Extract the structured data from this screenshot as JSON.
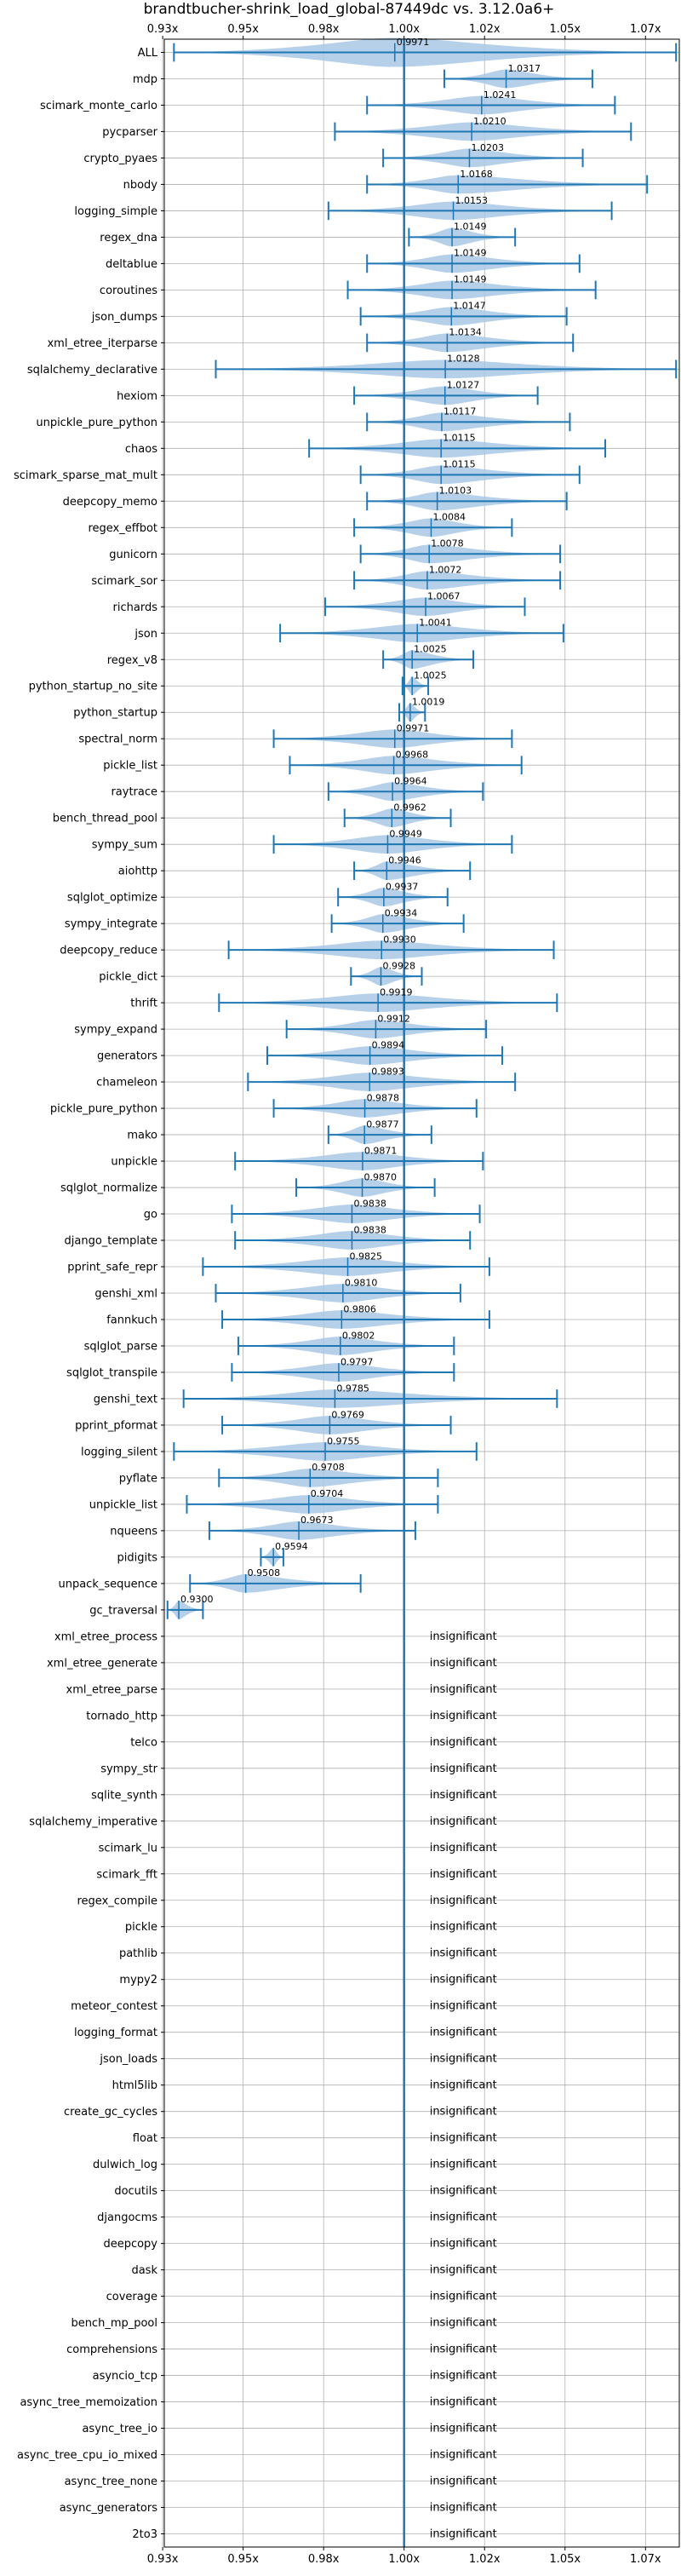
{
  "chart_data": {
    "type": "violin",
    "title": "brandtbucher-shrink_load_global-87449dc vs. 3.12.0a6+",
    "xlabel": "",
    "ylabel": "",
    "x_range": [
      0.9255,
      1.0855
    ],
    "x_ticks": [
      {
        "value": 0.925,
        "label": "0.93x"
      },
      {
        "value": 0.95,
        "label": "0.95x"
      },
      {
        "value": 0.975,
        "label": "0.98x"
      },
      {
        "value": 1.0,
        "label": "1.00x"
      },
      {
        "value": 1.025,
        "label": "1.02x"
      },
      {
        "value": 1.05,
        "label": "1.05x"
      },
      {
        "value": 1.075,
        "label": "1.07x"
      }
    ],
    "reference_x": 1.0,
    "grid": true,
    "colors": {
      "violin": "#a8c8e4",
      "line": "#1f77b4",
      "grid": "#b0b0b0"
    },
    "insignificant_label": "insignificant",
    "benchmarks": [
      {
        "name": "ALL",
        "mean": 0.9971,
        "label": "0.9971",
        "min": 0.9285,
        "max": 1.0845,
        "width": 0.55
      },
      {
        "name": "mdp",
        "mean": 1.0317,
        "label": "1.0317",
        "min": 1.0125,
        "max": 1.0585,
        "width": 0.35
      },
      {
        "name": "scimark_monte_carlo",
        "mean": 1.0241,
        "label": "1.0241",
        "min": 0.9885,
        "max": 1.0655,
        "width": 0.35
      },
      {
        "name": "pycparser",
        "mean": 1.021,
        "label": "1.0210",
        "min": 0.9785,
        "max": 1.0705,
        "width": 0.35
      },
      {
        "name": "crypto_pyaes",
        "mean": 1.0203,
        "label": "1.0203",
        "min": 0.9935,
        "max": 1.0555,
        "width": 0.35
      },
      {
        "name": "nbody",
        "mean": 1.0168,
        "label": "1.0168",
        "min": 0.9885,
        "max": 1.0755,
        "width": 0.35
      },
      {
        "name": "logging_simple",
        "mean": 1.0153,
        "label": "1.0153",
        "min": 0.9765,
        "max": 1.0645,
        "width": 0.35
      },
      {
        "name": "regex_dna",
        "mean": 1.0149,
        "label": "1.0149",
        "min": 1.0015,
        "max": 1.0345,
        "width": 0.35
      },
      {
        "name": "deltablue",
        "mean": 1.0149,
        "label": "1.0149",
        "min": 0.9885,
        "max": 1.0545,
        "width": 0.35
      },
      {
        "name": "coroutines",
        "mean": 1.0149,
        "label": "1.0149",
        "min": 0.9825,
        "max": 1.0595,
        "width": 0.35
      },
      {
        "name": "json_dumps",
        "mean": 1.0147,
        "label": "1.0147",
        "min": 0.9865,
        "max": 1.0505,
        "width": 0.35
      },
      {
        "name": "xml_etree_iterparse",
        "mean": 1.0134,
        "label": "1.0134",
        "min": 0.9885,
        "max": 1.0525,
        "width": 0.35
      },
      {
        "name": "sqlalchemy_declarative",
        "mean": 1.0128,
        "label": "1.0128",
        "min": 0.9415,
        "max": 1.0845,
        "width": 0.35
      },
      {
        "name": "hexiom",
        "mean": 1.0127,
        "label": "1.0127",
        "min": 0.9845,
        "max": 1.0415,
        "width": 0.35
      },
      {
        "name": "unpickle_pure_python",
        "mean": 1.0117,
        "label": "1.0117",
        "min": 0.9885,
        "max": 1.0515,
        "width": 0.35
      },
      {
        "name": "chaos",
        "mean": 1.0115,
        "label": "1.0115",
        "min": 0.9705,
        "max": 1.0625,
        "width": 0.35
      },
      {
        "name": "scimark_sparse_mat_mult",
        "mean": 1.0115,
        "label": "1.0115",
        "min": 0.9865,
        "max": 1.0545,
        "width": 0.35
      },
      {
        "name": "deepcopy_memo",
        "mean": 1.0103,
        "label": "1.0103",
        "min": 0.9885,
        "max": 1.0505,
        "width": 0.35
      },
      {
        "name": "regex_effbot",
        "mean": 1.0084,
        "label": "1.0084",
        "min": 0.9845,
        "max": 1.0335,
        "width": 0.35
      },
      {
        "name": "gunicorn",
        "mean": 1.0078,
        "label": "1.0078",
        "min": 0.9865,
        "max": 1.0485,
        "width": 0.35
      },
      {
        "name": "scimark_sor",
        "mean": 1.0072,
        "label": "1.0072",
        "min": 0.9845,
        "max": 1.0485,
        "width": 0.35
      },
      {
        "name": "richards",
        "mean": 1.0067,
        "label": "1.0067",
        "min": 0.9755,
        "max": 1.0375,
        "width": 0.35
      },
      {
        "name": "json",
        "mean": 1.0041,
        "label": "1.0041",
        "min": 0.9615,
        "max": 1.0495,
        "width": 0.35
      },
      {
        "name": "regex_v8",
        "mean": 1.0025,
        "label": "1.0025",
        "min": 0.9935,
        "max": 1.0215,
        "width": 0.35
      },
      {
        "name": "python_startup_no_site",
        "mean": 1.0025,
        "label": "1.0025",
        "min": 0.9995,
        "max": 1.0075,
        "width": 0.35
      },
      {
        "name": "python_startup",
        "mean": 1.0019,
        "label": "1.0019",
        "min": 0.9985,
        "max": 1.0065,
        "width": 0.35
      },
      {
        "name": "spectral_norm",
        "mean": 0.9971,
        "label": "0.9971",
        "min": 0.9595,
        "max": 1.0335,
        "width": 0.35
      },
      {
        "name": "pickle_list",
        "mean": 0.9968,
        "label": "0.9968",
        "min": 0.9645,
        "max": 1.0365,
        "width": 0.35
      },
      {
        "name": "raytrace",
        "mean": 0.9964,
        "label": "0.9964",
        "min": 0.9765,
        "max": 1.0245,
        "width": 0.35
      },
      {
        "name": "bench_thread_pool",
        "mean": 0.9962,
        "label": "0.9962",
        "min": 0.9815,
        "max": 1.0145,
        "width": 0.35
      },
      {
        "name": "sympy_sum",
        "mean": 0.9949,
        "label": "0.9949",
        "min": 0.9595,
        "max": 1.0335,
        "width": 0.35
      },
      {
        "name": "aiohttp",
        "mean": 0.9946,
        "label": "0.9946",
        "min": 0.9845,
        "max": 1.0205,
        "width": 0.35
      },
      {
        "name": "sqlglot_optimize",
        "mean": 0.9937,
        "label": "0.9937",
        "min": 0.9795,
        "max": 1.0135,
        "width": 0.35
      },
      {
        "name": "sympy_integrate",
        "mean": 0.9934,
        "label": "0.9934",
        "min": 0.9775,
        "max": 1.0185,
        "width": 0.35
      },
      {
        "name": "deepcopy_reduce",
        "mean": 0.993,
        "label": "0.9930",
        "min": 0.9455,
        "max": 1.0465,
        "width": 0.35
      },
      {
        "name": "pickle_dict",
        "mean": 0.9928,
        "label": "0.9928",
        "min": 0.9835,
        "max": 1.0055,
        "width": 0.35
      },
      {
        "name": "thrift",
        "mean": 0.9919,
        "label": "0.9919",
        "min": 0.9425,
        "max": 1.0475,
        "width": 0.35
      },
      {
        "name": "sympy_expand",
        "mean": 0.9912,
        "label": "0.9912",
        "min": 0.9635,
        "max": 1.0255,
        "width": 0.35
      },
      {
        "name": "generators",
        "mean": 0.9894,
        "label": "0.9894",
        "min": 0.9575,
        "max": 1.0305,
        "width": 0.35
      },
      {
        "name": "chameleon",
        "mean": 0.9893,
        "label": "0.9893",
        "min": 0.9515,
        "max": 1.0345,
        "width": 0.35
      },
      {
        "name": "pickle_pure_python",
        "mean": 0.9878,
        "label": "0.9878",
        "min": 0.9595,
        "max": 1.0225,
        "width": 0.35
      },
      {
        "name": "mako",
        "mean": 0.9877,
        "label": "0.9877",
        "min": 0.9765,
        "max": 1.0085,
        "width": 0.35
      },
      {
        "name": "unpickle",
        "mean": 0.9871,
        "label": "0.9871",
        "min": 0.9475,
        "max": 1.0245,
        "width": 0.35
      },
      {
        "name": "sqlglot_normalize",
        "mean": 0.987,
        "label": "0.9870",
        "min": 0.9665,
        "max": 1.0095,
        "width": 0.35
      },
      {
        "name": "go",
        "mean": 0.9838,
        "label": "0.9838",
        "min": 0.9465,
        "max": 1.0235,
        "width": 0.35
      },
      {
        "name": "django_template",
        "mean": 0.9838,
        "label": "0.9838",
        "min": 0.9475,
        "max": 1.0205,
        "width": 0.35
      },
      {
        "name": "pprint_safe_repr",
        "mean": 0.9825,
        "label": "0.9825",
        "min": 0.9375,
        "max": 1.0265,
        "width": 0.35
      },
      {
        "name": "genshi_xml",
        "mean": 0.981,
        "label": "0.9810",
        "min": 0.9415,
        "max": 1.0175,
        "width": 0.35
      },
      {
        "name": "fannkuch",
        "mean": 0.9806,
        "label": "0.9806",
        "min": 0.9435,
        "max": 1.0265,
        "width": 0.35
      },
      {
        "name": "sqlglot_parse",
        "mean": 0.9802,
        "label": "0.9802",
        "min": 0.9485,
        "max": 1.0155,
        "width": 0.35
      },
      {
        "name": "sqlglot_transpile",
        "mean": 0.9797,
        "label": "0.9797",
        "min": 0.9465,
        "max": 1.0155,
        "width": 0.35
      },
      {
        "name": "genshi_text",
        "mean": 0.9785,
        "label": "0.9785",
        "min": 0.9315,
        "max": 1.0475,
        "width": 0.35
      },
      {
        "name": "pprint_pformat",
        "mean": 0.9769,
        "label": "0.9769",
        "min": 0.9435,
        "max": 1.0145,
        "width": 0.35
      },
      {
        "name": "logging_silent",
        "mean": 0.9755,
        "label": "0.9755",
        "min": 0.9285,
        "max": 1.0225,
        "width": 0.35
      },
      {
        "name": "pyflate",
        "mean": 0.9708,
        "label": "0.9708",
        "min": 0.9425,
        "max": 1.0105,
        "width": 0.35
      },
      {
        "name": "unpickle_list",
        "mean": 0.9704,
        "label": "0.9704",
        "min": 0.9325,
        "max": 1.0105,
        "width": 0.35
      },
      {
        "name": "nqueens",
        "mean": 0.9673,
        "label": "0.9673",
        "min": 0.9395,
        "max": 1.0035,
        "width": 0.35
      },
      {
        "name": "pidigits",
        "mean": 0.9594,
        "label": "0.9594",
        "min": 0.9555,
        "max": 0.9625,
        "width": 0.35
      },
      {
        "name": "unpack_sequence",
        "mean": 0.9508,
        "label": "0.9508",
        "min": 0.9335,
        "max": 0.9865,
        "width": 0.35
      },
      {
        "name": "gc_traversal",
        "mean": 0.93,
        "label": "0.9300",
        "min": 0.9265,
        "max": 0.9375,
        "width": 0.35
      },
      {
        "name": "xml_etree_process",
        "insignificant": true
      },
      {
        "name": "xml_etree_generate",
        "insignificant": true
      },
      {
        "name": "xml_etree_parse",
        "insignificant": true
      },
      {
        "name": "tornado_http",
        "insignificant": true
      },
      {
        "name": "telco",
        "insignificant": true
      },
      {
        "name": "sympy_str",
        "insignificant": true
      },
      {
        "name": "sqlite_synth",
        "insignificant": true
      },
      {
        "name": "sqlalchemy_imperative",
        "insignificant": true
      },
      {
        "name": "scimark_lu",
        "insignificant": true
      },
      {
        "name": "scimark_fft",
        "insignificant": true
      },
      {
        "name": "regex_compile",
        "insignificant": true
      },
      {
        "name": "pickle",
        "insignificant": true
      },
      {
        "name": "pathlib",
        "insignificant": true
      },
      {
        "name": "mypy2",
        "insignificant": true
      },
      {
        "name": "meteor_contest",
        "insignificant": true
      },
      {
        "name": "logging_format",
        "insignificant": true
      },
      {
        "name": "json_loads",
        "insignificant": true
      },
      {
        "name": "html5lib",
        "insignificant": true
      },
      {
        "name": "create_gc_cycles",
        "insignificant": true
      },
      {
        "name": "float",
        "insignificant": true
      },
      {
        "name": "dulwich_log",
        "insignificant": true
      },
      {
        "name": "docutils",
        "insignificant": true
      },
      {
        "name": "djangocms",
        "insignificant": true
      },
      {
        "name": "deepcopy",
        "insignificant": true
      },
      {
        "name": "dask",
        "insignificant": true
      },
      {
        "name": "coverage",
        "insignificant": true
      },
      {
        "name": "bench_mp_pool",
        "insignificant": true
      },
      {
        "name": "comprehensions",
        "insignificant": true
      },
      {
        "name": "asyncio_tcp",
        "insignificant": true
      },
      {
        "name": "async_tree_memoization",
        "insignificant": true
      },
      {
        "name": "async_tree_io",
        "insignificant": true
      },
      {
        "name": "async_tree_cpu_io_mixed",
        "insignificant": true
      },
      {
        "name": "async_tree_none",
        "insignificant": true
      },
      {
        "name": "async_generators",
        "insignificant": true
      },
      {
        "name": "2to3",
        "insignificant": true
      }
    ]
  }
}
